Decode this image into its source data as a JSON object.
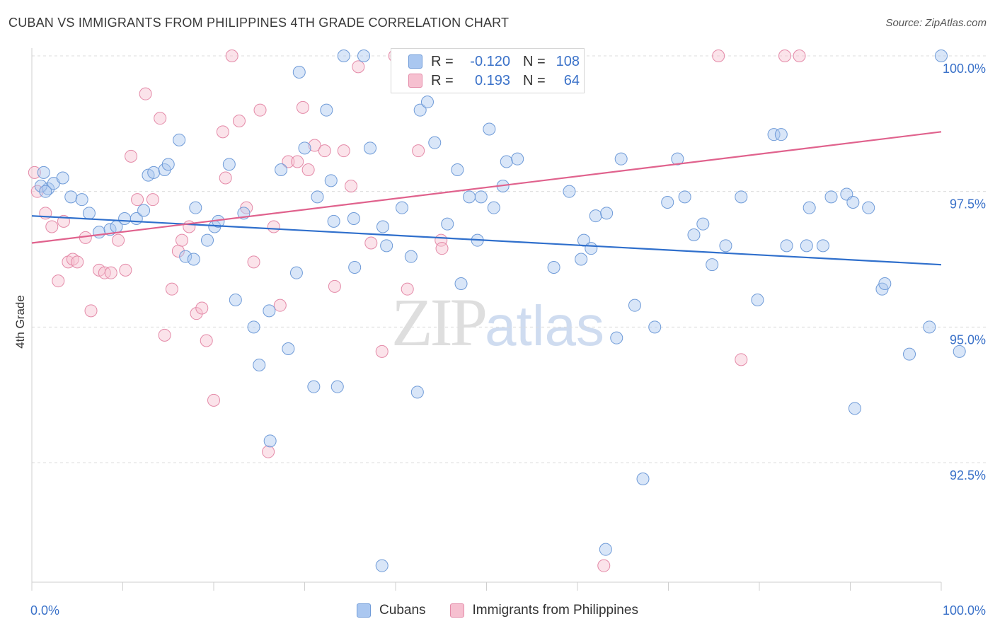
{
  "title": "CUBAN VS IMMIGRANTS FROM PHILIPPINES 4TH GRADE CORRELATION CHART",
  "source": "Source: ZipAtlas.com",
  "watermark": {
    "zip": "ZIP",
    "atlas": "atlas"
  },
  "legend": {
    "rows": [
      {
        "r_label": "R =",
        "r_value": "-0.120",
        "n_label": "N =",
        "n_value": "108",
        "color": "#aac7f0",
        "border": "#6f9bd8"
      },
      {
        "r_label": "R =",
        "r_value": "0.193",
        "n_label": "N =",
        "n_value": "64",
        "color": "#f6c0d0",
        "border": "#e48aa8"
      }
    ]
  },
  "bottom_legend": {
    "cubans": "Cubans",
    "philippines": "Immigrants from Philippines"
  },
  "colors": {
    "blue_fill": "#aac7f0",
    "blue_stroke": "#6f9bd8",
    "blue_line": "#2f6fcc",
    "pink_fill": "#f6c0d0",
    "pink_stroke": "#e48aa8",
    "pink_line": "#e0628d",
    "tick_label": "#3b72c9"
  },
  "chart_data": {
    "type": "scatter",
    "title": "CUBAN VS IMMIGRANTS FROM PHILIPPINES 4TH GRADE CORRELATION CHART",
    "xlabel": "",
    "ylabel": "4th Grade",
    "xlim": [
      0,
      100
    ],
    "ylim": [
      90.0,
      100.4
    ],
    "x_tick_labels": [
      "0.0%",
      "100.0%"
    ],
    "y_ticks": [
      92.5,
      95.0,
      97.5,
      100.0
    ],
    "y_tick_labels": [
      "92.5%",
      "95.0%",
      "97.5%",
      "100.0%"
    ],
    "grid": true,
    "legend_position": "top-center",
    "series": [
      {
        "name": "Cubans",
        "trend": {
          "x": [
            0,
            100
          ],
          "y": [
            97.05,
            96.15
          ]
        },
        "points": [
          [
            1.3,
            97.85
          ],
          [
            1.8,
            97.55
          ],
          [
            2.4,
            97.65
          ],
          [
            3.4,
            97.75
          ],
          [
            4.3,
            97.4
          ],
          [
            5.5,
            97.35
          ],
          [
            6.3,
            97.1
          ],
          [
            7.4,
            96.75
          ],
          [
            8.6,
            96.8
          ],
          [
            9.3,
            96.85
          ],
          [
            10.2,
            97.0
          ],
          [
            11.5,
            97.0
          ],
          [
            12.3,
            97.15
          ],
          [
            12.8,
            97.8
          ],
          [
            13.4,
            97.85
          ],
          [
            14.6,
            97.9
          ],
          [
            15.0,
            98.0
          ],
          [
            16.2,
            98.45
          ],
          [
            16.9,
            96.3
          ],
          [
            17.8,
            96.25
          ],
          [
            18.0,
            97.2
          ],
          [
            19.3,
            96.6
          ],
          [
            20.1,
            96.85
          ],
          [
            20.5,
            96.95
          ],
          [
            21.7,
            98.0
          ],
          [
            22.4,
            95.5
          ],
          [
            23.3,
            97.1
          ],
          [
            24.4,
            95.0
          ],
          [
            25.0,
            94.3
          ],
          [
            26.2,
            92.9
          ],
          [
            26.1,
            95.3
          ],
          [
            27.4,
            97.9
          ],
          [
            28.2,
            94.6
          ],
          [
            29.1,
            96.0
          ],
          [
            29.4,
            99.7
          ],
          [
            30.0,
            98.3
          ],
          [
            31.0,
            93.9
          ],
          [
            31.4,
            97.4
          ],
          [
            32.4,
            99.0
          ],
          [
            32.9,
            97.7
          ],
          [
            33.6,
            93.9
          ],
          [
            33.2,
            96.95
          ],
          [
            35.5,
            96.1
          ],
          [
            34.3,
            100.0
          ],
          [
            35.4,
            97.0
          ],
          [
            36.5,
            100.0
          ],
          [
            37.2,
            98.3
          ],
          [
            38.6,
            96.85
          ],
          [
            38.5,
            90.6
          ],
          [
            39.0,
            96.5
          ],
          [
            40.7,
            97.2
          ],
          [
            41.7,
            96.3
          ],
          [
            42.4,
            93.8
          ],
          [
            42.7,
            99.0
          ],
          [
            43.5,
            99.15
          ],
          [
            44.3,
            98.4
          ],
          [
            45.7,
            96.9
          ],
          [
            46.8,
            97.9
          ],
          [
            47.2,
            95.8
          ],
          [
            48.1,
            97.4
          ],
          [
            49.0,
            96.6
          ],
          [
            49.4,
            97.4
          ],
          [
            50.3,
            98.65
          ],
          [
            50.8,
            97.2
          ],
          [
            51.8,
            97.6
          ],
          [
            52.2,
            98.05
          ],
          [
            53.4,
            98.1
          ],
          [
            57.4,
            96.1
          ],
          [
            59.1,
            97.5
          ],
          [
            60.4,
            96.25
          ],
          [
            60.7,
            96.6
          ],
          [
            61.5,
            96.45
          ],
          [
            62.0,
            97.05
          ],
          [
            63.2,
            97.1
          ],
          [
            63.1,
            90.9
          ],
          [
            64.3,
            94.8
          ],
          [
            64.8,
            98.1
          ],
          [
            66.3,
            95.4
          ],
          [
            67.2,
            92.2
          ],
          [
            68.5,
            95.0
          ],
          [
            69.9,
            97.3
          ],
          [
            71.0,
            98.1
          ],
          [
            71.8,
            97.4
          ],
          [
            72.8,
            96.7
          ],
          [
            73.8,
            96.9
          ],
          [
            74.8,
            96.15
          ],
          [
            76.3,
            96.5
          ],
          [
            78.0,
            97.4
          ],
          [
            79.8,
            95.5
          ],
          [
            81.6,
            98.55
          ],
          [
            82.4,
            98.55
          ],
          [
            83.0,
            96.5
          ],
          [
            85.5,
            97.2
          ],
          [
            85.2,
            96.5
          ],
          [
            87.0,
            96.5
          ],
          [
            87.9,
            97.4
          ],
          [
            89.6,
            97.45
          ],
          [
            90.3,
            97.3
          ],
          [
            90.5,
            93.5
          ],
          [
            92.0,
            97.2
          ],
          [
            93.5,
            95.7
          ],
          [
            93.8,
            95.8
          ],
          [
            96.5,
            94.5
          ],
          [
            98.7,
            95.0
          ],
          [
            100.0,
            100.0
          ],
          [
            102.0,
            94.55
          ],
          [
            1.0,
            97.6
          ],
          [
            1.5,
            97.5
          ]
        ]
      },
      {
        "name": "Immigrants from Philippines",
        "trend": {
          "x": [
            0,
            100
          ],
          "y": [
            96.55,
            98.6
          ]
        },
        "points": [
          [
            0.3,
            97.85
          ],
          [
            0.6,
            97.5
          ],
          [
            1.5,
            97.1
          ],
          [
            2.2,
            96.85
          ],
          [
            2.9,
            95.85
          ],
          [
            3.5,
            96.95
          ],
          [
            4.0,
            96.2
          ],
          [
            4.5,
            96.25
          ],
          [
            5.0,
            96.2
          ],
          [
            5.9,
            96.65
          ],
          [
            6.5,
            95.3
          ],
          [
            7.4,
            96.05
          ],
          [
            8.0,
            96.0
          ],
          [
            8.7,
            96.0
          ],
          [
            9.5,
            96.6
          ],
          [
            10.3,
            96.05
          ],
          [
            10.9,
            98.15
          ],
          [
            11.6,
            97.35
          ],
          [
            12.5,
            99.3
          ],
          [
            13.3,
            97.35
          ],
          [
            14.1,
            98.85
          ],
          [
            14.6,
            94.85
          ],
          [
            15.4,
            95.7
          ],
          [
            16.1,
            96.4
          ],
          [
            16.5,
            96.6
          ],
          [
            17.3,
            96.85
          ],
          [
            18.1,
            95.25
          ],
          [
            18.7,
            95.35
          ],
          [
            19.2,
            94.75
          ],
          [
            20.0,
            93.65
          ],
          [
            21.0,
            98.6
          ],
          [
            21.3,
            97.75
          ],
          [
            22.0,
            100.0
          ],
          [
            22.8,
            98.8
          ],
          [
            23.6,
            97.2
          ],
          [
            24.4,
            96.2
          ],
          [
            25.1,
            99.0
          ],
          [
            26.0,
            92.7
          ],
          [
            26.6,
            96.85
          ],
          [
            27.3,
            95.4
          ],
          [
            28.2,
            98.05
          ],
          [
            29.2,
            98.05
          ],
          [
            29.8,
            99.05
          ],
          [
            30.4,
            97.9
          ],
          [
            31.1,
            98.35
          ],
          [
            32.2,
            98.25
          ],
          [
            33.3,
            95.75
          ],
          [
            34.3,
            98.25
          ],
          [
            35.1,
            97.6
          ],
          [
            35.9,
            99.8
          ],
          [
            37.3,
            96.55
          ],
          [
            38.5,
            94.55
          ],
          [
            39.9,
            100.0
          ],
          [
            40.5,
            100.0
          ],
          [
            41.3,
            95.7
          ],
          [
            42.5,
            98.25
          ],
          [
            45.0,
            96.6
          ],
          [
            45.1,
            96.45
          ],
          [
            59.8,
            100.0
          ],
          [
            62.9,
            90.6
          ],
          [
            75.5,
            100.0
          ],
          [
            78.0,
            94.4
          ],
          [
            82.8,
            100.0
          ],
          [
            84.4,
            100.0
          ]
        ]
      }
    ]
  }
}
